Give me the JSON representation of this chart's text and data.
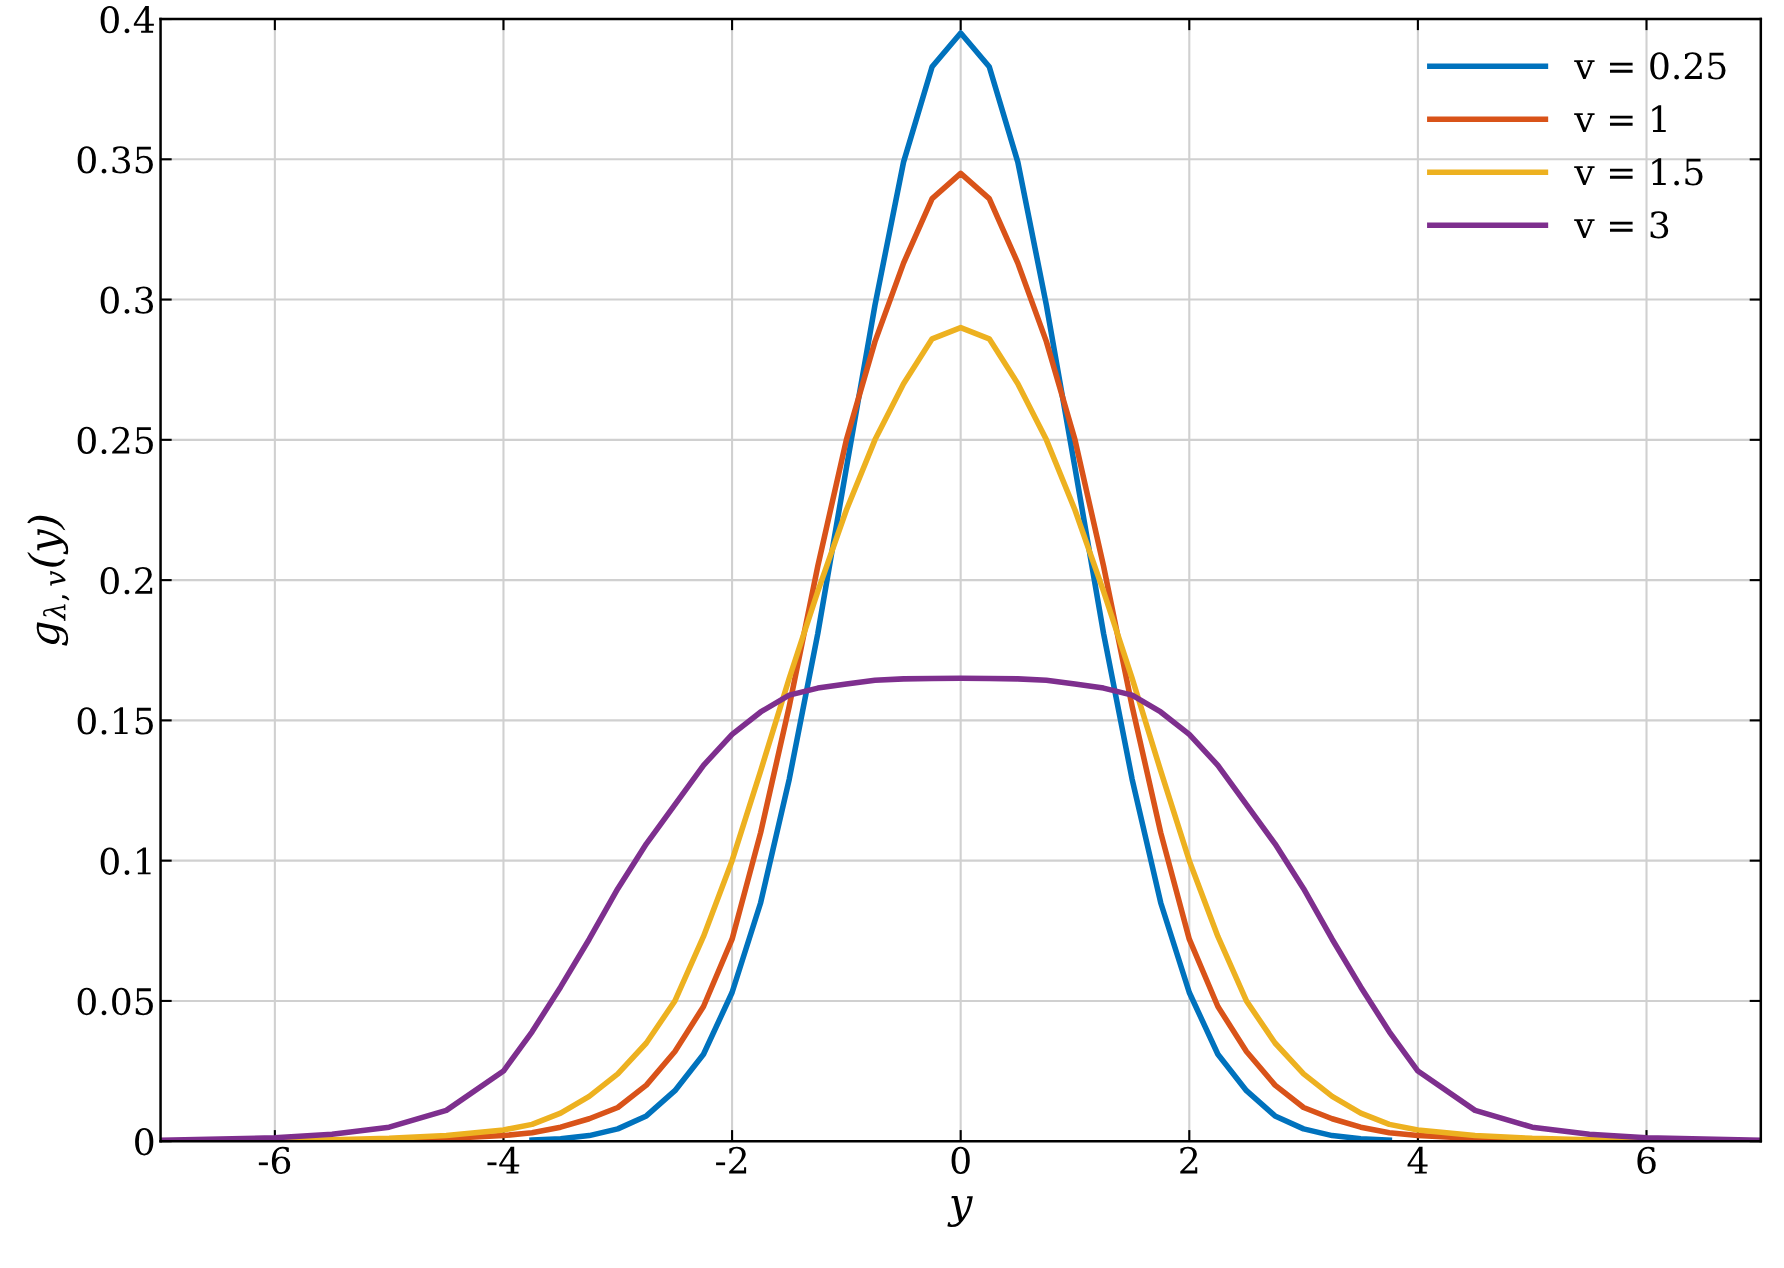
{
  "chart_data": {
    "type": "line",
    "xlabel": "y",
    "ylabel": "g$_{λ,v}$(y)",
    "x": [
      -7,
      -6,
      -5.5,
      -5,
      -4.5,
      -4,
      -3.75,
      -3.5,
      -3.25,
      -3,
      -2.75,
      -2.5,
      -2.25,
      -2,
      -1.75,
      -1.5,
      -1.25,
      -1,
      -0.75,
      -0.5,
      -0.25,
      0,
      0.25,
      0.5,
      0.75,
      1,
      1.25,
      1.5,
      1.75,
      2,
      2.25,
      2.5,
      2.75,
      3,
      3.25,
      3.5,
      3.75,
      4,
      4.5,
      5,
      5.5,
      6,
      7
    ],
    "series": [
      {
        "name": "v = 0.25",
        "color": "#0072bd",
        "values": [
          null,
          null,
          null,
          null,
          null,
          null,
          0.0004,
          0.0009,
          0.002,
          0.0044,
          0.009,
          0.018,
          0.031,
          0.053,
          0.085,
          0.129,
          0.181,
          0.24,
          0.298,
          0.349,
          0.383,
          0.395,
          0.383,
          0.349,
          0.298,
          0.24,
          0.181,
          0.129,
          0.085,
          0.053,
          0.031,
          0.018,
          0.009,
          0.0044,
          0.002,
          0.0009,
          0.0004,
          null,
          null,
          null,
          null,
          null,
          null
        ]
      },
      {
        "name": "v = 1",
        "color": "#d95319",
        "values": [
          0,
          0,
          0.0001,
          0.0003,
          0.001,
          0.002,
          0.003,
          0.005,
          0.008,
          0.012,
          0.02,
          0.032,
          0.048,
          0.072,
          0.11,
          0.155,
          0.205,
          0.25,
          0.285,
          0.313,
          0.336,
          0.345,
          0.336,
          0.313,
          0.285,
          0.25,
          0.205,
          0.155,
          0.11,
          0.072,
          0.048,
          0.032,
          0.02,
          0.012,
          0.008,
          0.005,
          0.003,
          0.002,
          0.001,
          0.0003,
          0.0001,
          0,
          0
        ]
      },
      {
        "name": "v = 1.5",
        "color": "#edb120",
        "values": [
          0,
          0.0002,
          0.0005,
          0.001,
          0.002,
          0.004,
          0.006,
          0.01,
          0.016,
          0.024,
          0.035,
          0.05,
          0.073,
          0.1,
          0.132,
          0.165,
          0.196,
          0.225,
          0.25,
          0.27,
          0.286,
          0.29,
          0.286,
          0.27,
          0.25,
          0.225,
          0.196,
          0.165,
          0.132,
          0.1,
          0.073,
          0.05,
          0.035,
          0.024,
          0.016,
          0.01,
          0.006,
          0.004,
          0.002,
          0.001,
          0.0005,
          0.0002,
          0
        ]
      },
      {
        "name": "v = 3",
        "color": "#7e2f8e",
        "values": [
          0.0003,
          0.0012,
          0.0025,
          0.005,
          0.011,
          0.025,
          0.039,
          0.055,
          0.072,
          0.09,
          0.106,
          0.12,
          0.134,
          0.145,
          0.153,
          0.159,
          0.1615,
          0.163,
          0.1643,
          0.1648,
          0.1649,
          0.165,
          0.1649,
          0.1648,
          0.1643,
          0.163,
          0.1615,
          0.159,
          0.153,
          0.145,
          0.134,
          0.12,
          0.106,
          0.09,
          0.072,
          0.055,
          0.039,
          0.025,
          0.011,
          0.005,
          0.0025,
          0.0012,
          0.0003
        ]
      }
    ],
    "xlim": [
      -7,
      7
    ],
    "xticks": [
      -6,
      -4,
      -2,
      0,
      2,
      4,
      6
    ],
    "ylim": [
      0,
      0.4
    ],
    "yticks": [
      0,
      0.05,
      0.1,
      0.15,
      0.2,
      0.25,
      0.3,
      0.35,
      0.4
    ],
    "grid": true,
    "legend": "top right",
    "line_style": "solid",
    "marker": "none"
  }
}
